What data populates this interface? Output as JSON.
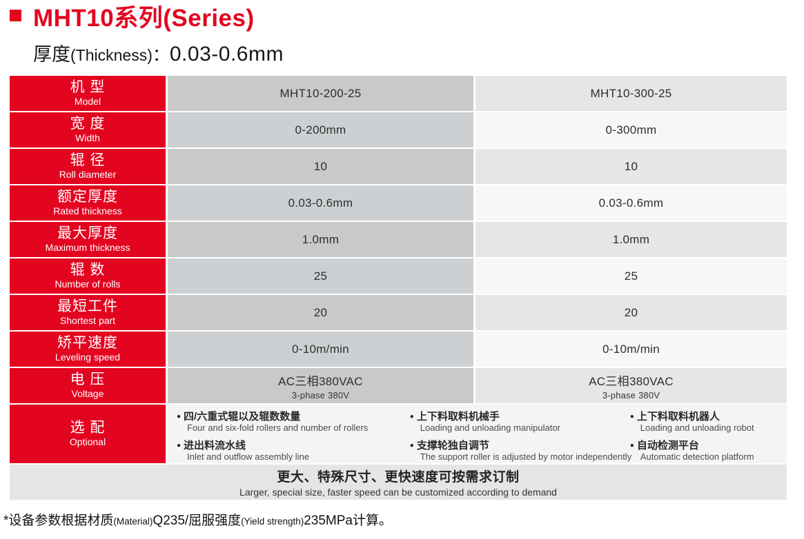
{
  "page": {
    "title": "MHT10系列(Series)",
    "subtitle": {
      "cn": "厚度",
      "en": "(Thickness)",
      "sep": "：",
      "value": "0.03-0.6mm"
    }
  },
  "icons": {
    "bullet": "●"
  },
  "colors": {
    "accent_red": "#e30420",
    "mid_col_odd": "#c9c9c9",
    "mid_col_even": "#cdd0d2",
    "right_col_odd": "#e6e6e6",
    "right_col_even": "#f7f7f7",
    "optional_bg": "#f4f4f4",
    "custom_row_bg": "#e5e5e5"
  },
  "table": {
    "rows": [
      {
        "label_cn": "机 型",
        "label_en": "Model",
        "values": [
          "MHT10-200-25",
          "MHT10-300-25"
        ]
      },
      {
        "label_cn": "宽 度",
        "label_en": "Width",
        "values": [
          "0-200mm",
          "0-300mm"
        ]
      },
      {
        "label_cn": "辊 径",
        "label_en": "Roll diameter",
        "values": [
          "10",
          "10"
        ]
      },
      {
        "label_cn": "额定厚度",
        "label_en": "Rated thickness",
        "values": [
          "0.03-0.6mm",
          "0.03-0.6mm"
        ]
      },
      {
        "label_cn": "最大厚度",
        "label_en": "Maximum thickness",
        "values": [
          "1.0mm",
          "1.0mm"
        ]
      },
      {
        "label_cn": "辊 数",
        "label_en": "Number of rolls",
        "values": [
          "25",
          "25"
        ]
      },
      {
        "label_cn": "最短工件",
        "label_en": "Shortest part",
        "values": [
          "20",
          "20"
        ]
      },
      {
        "label_cn": "矫平速度",
        "label_en": "Leveling speed",
        "values": [
          "0-10m/min",
          "0-10m/min"
        ]
      },
      {
        "label_cn": "电 压",
        "label_en": "Voltage",
        "values": [
          "AC三相380VAC",
          "AC三相380VAC"
        ],
        "subvalues": [
          "3-phase 380V",
          "3-phase 380V"
        ]
      }
    ],
    "optional": {
      "label_cn": "选 配",
      "label_en": "Optional",
      "items": [
        {
          "cn": "四/六重式辊以及辊数数量",
          "en": "Four and six-fold rollers and number of rollers"
        },
        {
          "cn": "进出料流水线",
          "en": "Inlet and outflow assembly line"
        },
        {
          "cn": "上下料取料机械手",
          "en": "Loading and unloading manipulator"
        },
        {
          "cn": "支撑轮独自调节",
          "en": "The support roller is adjusted by motor independently"
        },
        {
          "cn": "上下料取料机器人",
          "en": "Loading and unloading robot"
        },
        {
          "cn": "自动检测平台",
          "en": "Automatic detection platform"
        }
      ]
    },
    "customized": {
      "cn": "更大、特殊尺寸、更快速度可按需求订制",
      "en": "Larger, special size, faster speed can be customized according to demand"
    }
  },
  "footnote": {
    "p1": "*设备参数根据材质",
    "p2": "(Material)",
    "p3": "Q235/屈服强度",
    "p4": "(Yield strength)",
    "p5": "235MPa计算。"
  }
}
